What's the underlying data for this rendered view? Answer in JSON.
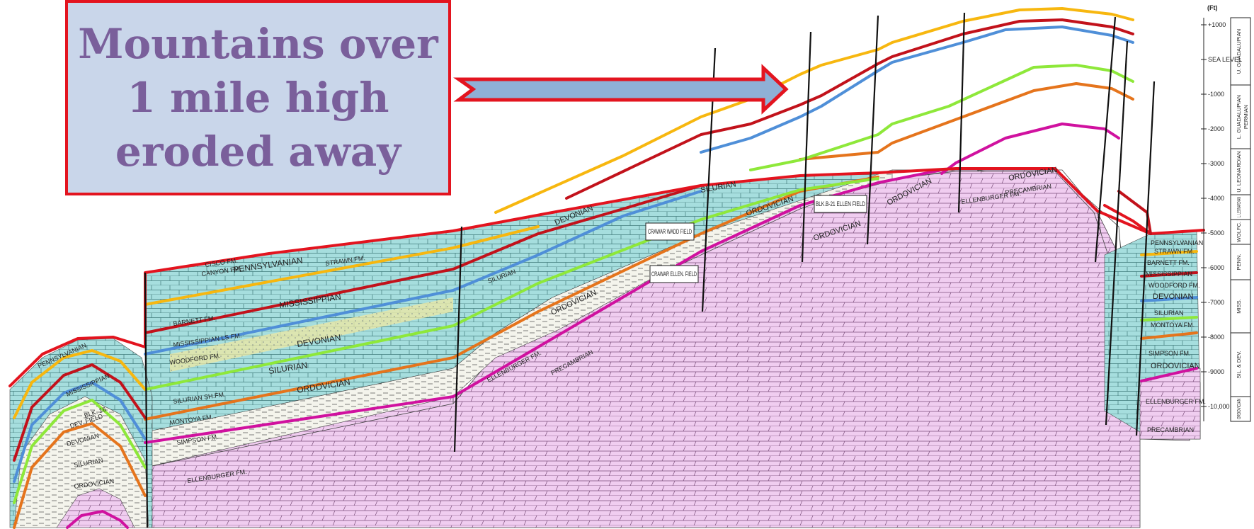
{
  "callout": {
    "line1": "Mountains over",
    "line2": "1 mile high",
    "line3": "eroded away"
  },
  "colors": {
    "callout_fill": "#c9d6ea",
    "callout_border": "#e3141f",
    "callout_text": "#7a5f9b",
    "arrow_fill": "#8fb0d6",
    "erosion_surface": "#e3141f",
    "horizon_yellow": "#f7b70f",
    "horizon_red": "#c2121b",
    "horizon_blue": "#4f8fd8",
    "horizon_green": "#8ee83a",
    "horizon_orange": "#e5741c",
    "horizon_magenta": "#d0119f",
    "limestone_fill": "#a6dede",
    "shale_fill": "#f2f2ea",
    "basement_fill": "#f0cdf0"
  },
  "scale": {
    "unit": "(Ft)",
    "ticks": [
      "+1000",
      "SEA LEVEL",
      "-1000",
      "-2000",
      "-3000",
      "-4000",
      "-5000",
      "-6000",
      "-7000",
      "-8000",
      "-9000",
      "-10,000"
    ],
    "periods": [
      "U. GUADALUPIAN",
      "L. GUADALUPIAN",
      "U. LEONARDIAN",
      "L. LEONARDIAN",
      "WOLFC.",
      "PENN.",
      "MISS.",
      "SIL. & DEV.",
      "ORDOVICIAN"
    ],
    "system": "PERMIAN"
  },
  "labels": {
    "pennsylvanian": "PENNSYLVANIAN",
    "mississippian": "MISSISSIPPIAN",
    "devonian": "DEVONIAN",
    "silurian": "SILURIAN",
    "ordovician": "ORDOVICIAN",
    "precambrian": "PRECAMBRIAN",
    "ellenburger": "ELLENBURGER FM.",
    "simpson": "SIMPSON FM.",
    "montoya": "MONTOYA FM.",
    "woodford": "WOODFORD FM.",
    "barnett": "BARNETT FM.",
    "strawn": "STRAWN FM.",
    "cisco": "CISCO FM.",
    "canyon": "CANYON FM.",
    "miss_ls": "MISSISSIPPIAN LS.FM.",
    "silurian_sh": "SILURIAN SH.FM.",
    "crawar_wadd": "CRAWAR WADD FIELD",
    "crawar_ellen": "CRAWAR ELLEN. FIELD",
    "blk_b21": "BLK.B-21 ELLEN FIELD",
    "blk16": "BLK. 16",
    "dev_field": "DEV. FIELD"
  }
}
